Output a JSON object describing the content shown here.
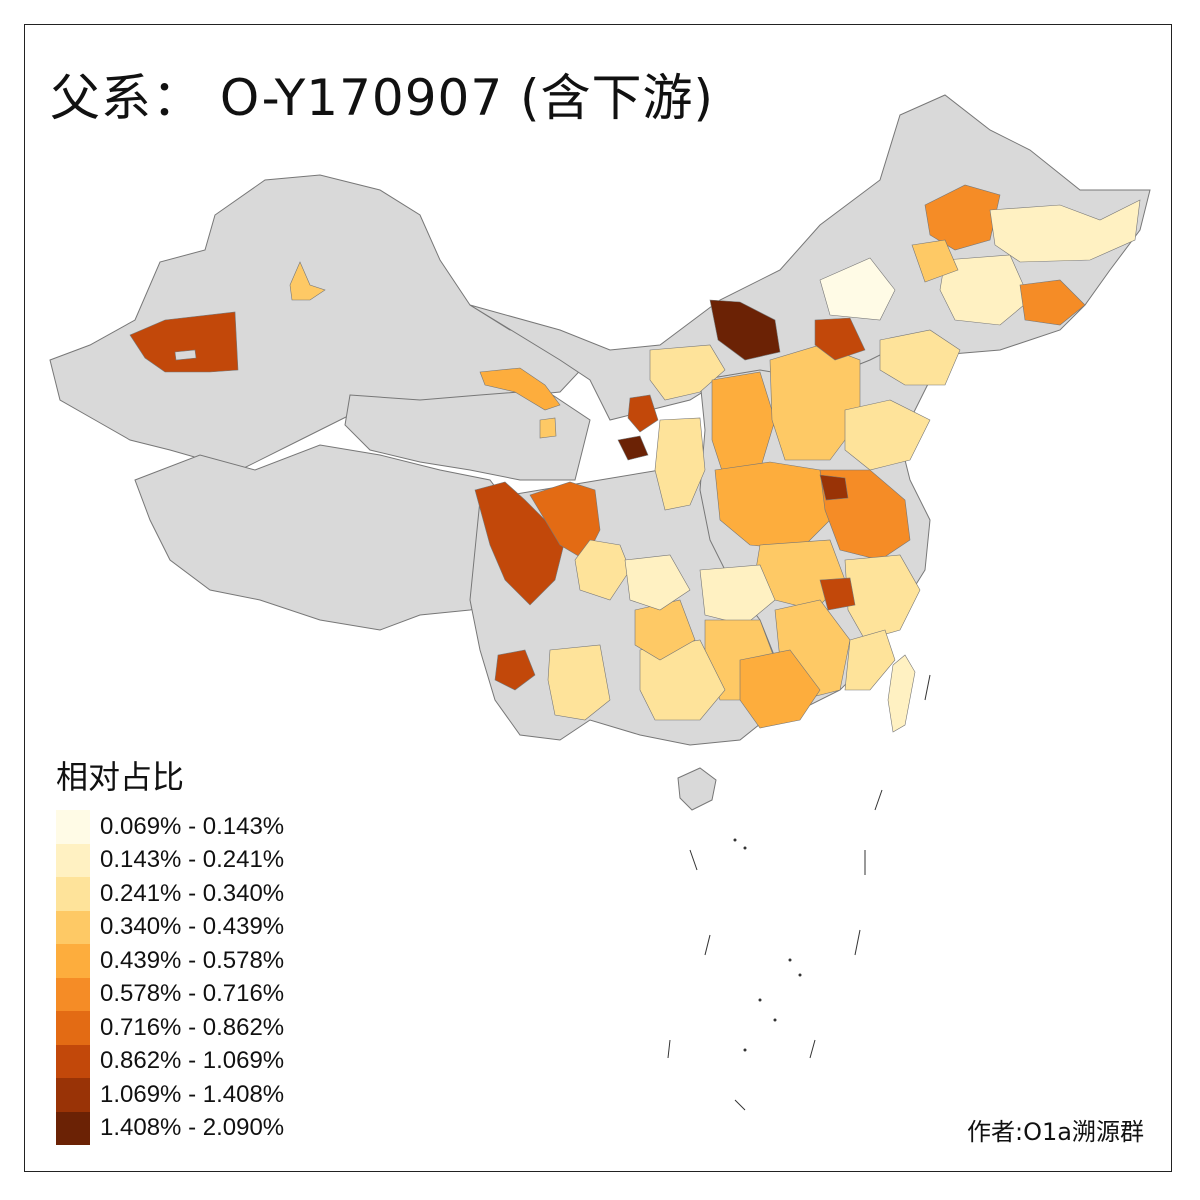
{
  "title": "父系： O-Y170907 (含下游)",
  "legend": {
    "title": "相对占比",
    "items": [
      {
        "label": "0.069% - 0.143%",
        "color": "#fffbe6"
      },
      {
        "label": "0.143% - 0.241%",
        "color": "#fff1c2"
      },
      {
        "label": "0.241% - 0.340%",
        "color": "#fee39a"
      },
      {
        "label": "0.340% - 0.439%",
        "color": "#fec965"
      },
      {
        "label": "0.439% - 0.578%",
        "color": "#fdad3d"
      },
      {
        "label": "0.578% - 0.716%",
        "color": "#f58c26"
      },
      {
        "label": "0.716% - 0.862%",
        "color": "#e36b14"
      },
      {
        "label": "0.862% - 1.069%",
        "color": "#c2480a"
      },
      {
        "label": "1.069% - 1.408%",
        "color": "#993306"
      },
      {
        "label": "1.408% - 2.090%",
        "color": "#6b2205"
      }
    ]
  },
  "author": "作者:O1a溯源群",
  "colors": {
    "no_data": "#d9d9d9",
    "border": "#777777"
  }
}
